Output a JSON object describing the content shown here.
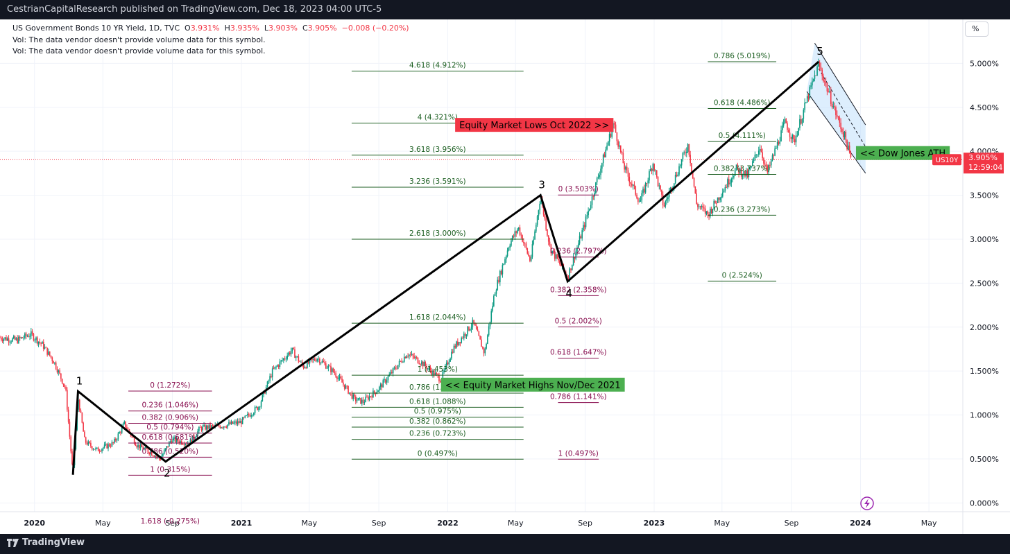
{
  "header": {
    "publisher": "CestrianCapitalResearch published on TradingView.com, Dec 18, 2023 04:00 UTC-5"
  },
  "legend": {
    "symbol": "US Government Bonds 10 YR Yield, 1D, TVC",
    "open_label": "O",
    "open": "3.931%",
    "high_label": "H",
    "high": "3.935%",
    "low_label": "L",
    "low": "3.903%",
    "close_label": "C",
    "close": "3.905%",
    "change": "−0.008 (−0.20%)",
    "vol_line_1": "Vol: The data vendor doesn't provide volume data for this symbol.",
    "vol_line_2": "Vol: The data vendor doesn't provide volume data for this symbol."
  },
  "scale_button": "%",
  "footer": {
    "brand": "TradingView"
  },
  "colors": {
    "up": "#089981",
    "down": "#f23645",
    "fib_green": "#1b5e20",
    "fib_maroon": "#880e4f",
    "green_box": "#4caf50",
    "red_box": "#f23645",
    "channel": "#bbdefb"
  },
  "chart_data": {
    "type": "line",
    "symbol": "US10Y",
    "ylim": [
      -0.1,
      5.5
    ],
    "xlim": [
      "2019-11-01",
      "2024-06-30"
    ],
    "y_ticks": [
      "0.000%",
      "0.500%",
      "1.000%",
      "1.500%",
      "2.000%",
      "2.500%",
      "3.000%",
      "3.500%",
      "4.000%",
      "4.500%",
      "5.000%"
    ],
    "x_ticks": [
      {
        "date": "2020-01-01",
        "label": "2020",
        "bold": true
      },
      {
        "date": "2020-05-01",
        "label": "May"
      },
      {
        "date": "2020-09-01",
        "label": "Sep"
      },
      {
        "date": "2021-01-01",
        "label": "2021",
        "bold": true
      },
      {
        "date": "2021-05-01",
        "label": "May"
      },
      {
        "date": "2021-09-01",
        "label": "Sep"
      },
      {
        "date": "2022-01-01",
        "label": "2022",
        "bold": true
      },
      {
        "date": "2022-05-01",
        "label": "May"
      },
      {
        "date": "2022-09-01",
        "label": "Sep"
      },
      {
        "date": "2023-01-01",
        "label": "2023",
        "bold": true
      },
      {
        "date": "2023-05-01",
        "label": "May"
      },
      {
        "date": "2023-09-01",
        "label": "Sep"
      },
      {
        "date": "2024-01-01",
        "label": "2024",
        "bold": true
      },
      {
        "date": "2024-05-01",
        "label": "May"
      }
    ],
    "price_path": [
      [
        "2019-11-01",
        1.88
      ],
      [
        "2019-12-01",
        1.85
      ],
      [
        "2019-12-25",
        1.92
      ],
      [
        "2020-01-15",
        1.8
      ],
      [
        "2020-02-05",
        1.6
      ],
      [
        "2020-02-25",
        1.3
      ],
      [
        "2020-03-09",
        0.32
      ],
      [
        "2020-03-18",
        1.2
      ],
      [
        "2020-03-30",
        0.7
      ],
      [
        "2020-04-20",
        0.6
      ],
      [
        "2020-05-20",
        0.68
      ],
      [
        "2020-06-08",
        0.9
      ],
      [
        "2020-06-30",
        0.66
      ],
      [
        "2020-07-31",
        0.55
      ],
      [
        "2020-08-10",
        0.5
      ],
      [
        "2020-08-30",
        0.72
      ],
      [
        "2020-10-01",
        0.68
      ],
      [
        "2020-10-20",
        0.85
      ],
      [
        "2020-11-30",
        0.88
      ],
      [
        "2020-12-31",
        0.92
      ],
      [
        "2021-02-01",
        1.1
      ],
      [
        "2021-02-25",
        1.5
      ],
      [
        "2021-03-31",
        1.74
      ],
      [
        "2021-04-20",
        1.55
      ],
      [
        "2021-05-15",
        1.65
      ],
      [
        "2021-06-15",
        1.48
      ],
      [
        "2021-07-20",
        1.18
      ],
      [
        "2021-08-04",
        1.15
      ],
      [
        "2021-09-01",
        1.3
      ],
      [
        "2021-10-21",
        1.7
      ],
      [
        "2021-11-15",
        1.6
      ],
      [
        "2021-12-20",
        1.4
      ],
      [
        "2022-01-10",
        1.75
      ],
      [
        "2022-02-15",
        2.05
      ],
      [
        "2022-03-07",
        1.7
      ],
      [
        "2022-03-25",
        2.4
      ],
      [
        "2022-04-20",
        2.95
      ],
      [
        "2022-05-06",
        3.13
      ],
      [
        "2022-05-27",
        2.75
      ],
      [
        "2022-06-14",
        3.49
      ],
      [
        "2022-07-01",
        2.9
      ],
      [
        "2022-08-01",
        2.57
      ],
      [
        "2022-08-30",
        3.15
      ],
      [
        "2022-09-30",
        3.85
      ],
      [
        "2022-10-21",
        4.32
      ],
      [
        "2022-11-10",
        3.8
      ],
      [
        "2022-12-07",
        3.42
      ],
      [
        "2022-12-30",
        3.87
      ],
      [
        "2023-01-18",
        3.37
      ],
      [
        "2023-03-02",
        4.08
      ],
      [
        "2023-03-17",
        3.4
      ],
      [
        "2023-04-06",
        3.28
      ],
      [
        "2023-05-26",
        3.8
      ],
      [
        "2023-06-15",
        3.72
      ],
      [
        "2023-07-07",
        4.06
      ],
      [
        "2023-07-20",
        3.75
      ],
      [
        "2023-08-21",
        4.34
      ],
      [
        "2023-09-05",
        4.1
      ],
      [
        "2023-09-30",
        4.62
      ],
      [
        "2023-10-19",
        4.99
      ],
      [
        "2023-11-01",
        4.75
      ],
      [
        "2023-11-20",
        4.4
      ],
      [
        "2023-12-05",
        4.15
      ],
      [
        "2023-12-15",
        3.905
      ]
    ],
    "wave_count": [
      {
        "label": "1",
        "date": "2020-03-18",
        "value": 1.27
      },
      {
        "label": "2",
        "date": "2020-08-20",
        "value": 0.47
      },
      {
        "label": "3",
        "date": "2022-06-14",
        "value": 3.5
      },
      {
        "label": "4",
        "date": "2022-08-01",
        "value": 2.52
      },
      {
        "label": "5",
        "date": "2023-10-19",
        "value": 5.02
      }
    ],
    "wave_start": {
      "date": "2020-03-09",
      "value": 0.32
    },
    "fib_sets": [
      {
        "color": "maroon",
        "from": "2020-06-15",
        "to": "2020-11-10",
        "levels": [
          {
            "label": "0 (1.272%)",
            "value": 1.272
          },
          {
            "label": "0.236 (1.046%)",
            "value": 1.046
          },
          {
            "label": "0.382 (0.906%)",
            "value": 0.906
          },
          {
            "label": "0.5 (0.794%)",
            "value": 0.794
          },
          {
            "label": "0.618 (0.681%)",
            "value": 0.681
          },
          {
            "label": "0.786 (0.520%)",
            "value": 0.52
          },
          {
            "label": "1 (0.315%)",
            "value": 0.315
          },
          {
            "label": "1.618 (-0.275%)",
            "value": -0.275
          }
        ]
      },
      {
        "color": "green",
        "from": "2021-07-15",
        "to": "2022-05-15",
        "levels": [
          {
            "label": "0 (0.497%)",
            "value": 0.497
          },
          {
            "label": "0.236 (0.723%)",
            "value": 0.723
          },
          {
            "label": "0.382 (0.862%)",
            "value": 0.862
          },
          {
            "label": "0.5 (0.975%)",
            "value": 0.975
          },
          {
            "label": "0.618 (1.088%)",
            "value": 1.088
          },
          {
            "label": "0.786 (1.249%)",
            "value": 1.249
          },
          {
            "label": "1 (1.453%)",
            "value": 1.453
          },
          {
            "label": "1.618 (2.044%)",
            "value": 2.044
          },
          {
            "label": "2.618 (3.000%)",
            "value": 3.0
          },
          {
            "label": "3.236 (3.591%)",
            "value": 3.591
          },
          {
            "label": "3.618 (3.956%)",
            "value": 3.956
          },
          {
            "label": "4 (4.321%)",
            "value": 4.321
          },
          {
            "label": "4.618 (4.912%)",
            "value": 4.912
          }
        ]
      },
      {
        "color": "maroon",
        "from": "2022-07-15",
        "to": "2022-09-25",
        "levels": [
          {
            "label": "0 (3.503%)",
            "value": 3.503
          },
          {
            "label": "0.236 (2.797%)",
            "value": 2.797
          },
          {
            "label": "0.382 (2.358%)",
            "value": 2.358
          },
          {
            "label": "0.5 (2.002%)",
            "value": 2.002
          },
          {
            "label": "0.618 (1.647%)",
            "value": 1.647
          },
          {
            "label": "0.786 (1.141%)",
            "value": 1.141
          },
          {
            "label": "1 (0.497%)",
            "value": 0.497
          }
        ]
      },
      {
        "color": "green",
        "from": "2023-04-06",
        "to": "2023-08-05",
        "levels": [
          {
            "label": "0 (2.524%)",
            "value": 2.524
          },
          {
            "label": "0.236 (3.273%)",
            "value": 3.273
          },
          {
            "label": "0.382 (3.737%)",
            "value": 3.737
          },
          {
            "label": "0.5 (4.111%)",
            "value": 4.111
          },
          {
            "label": "0.618 (4.486%)",
            "value": 4.486
          },
          {
            "label": "0.786 (5.019%)",
            "value": 5.019
          }
        ]
      }
    ],
    "annotations": [
      {
        "text": "Equity Market Lows Oct 2022 >>",
        "color": "red",
        "date": "2022-10-21",
        "value": 4.3,
        "anchor": "end"
      },
      {
        "text": "<< Equity Market Highs Nov/Dec 2021",
        "color": "green",
        "date": "2021-12-20",
        "value": 1.345,
        "anchor": "start"
      },
      {
        "text": "<< Dow Jones ATH",
        "color": "green",
        "date": "2023-12-24",
        "value": 3.98,
        "anchor": "start"
      }
    ],
    "channel": {
      "upper": [
        [
          "2023-10-12",
          5.23
        ],
        [
          "2024-01-10",
          4.3
        ]
      ],
      "lower": [
        [
          "2023-09-28",
          4.68
        ],
        [
          "2024-01-10",
          3.75
        ]
      ],
      "mid": [
        [
          "2023-10-19",
          4.94
        ],
        [
          "2024-01-10",
          4.05
        ]
      ]
    },
    "current_price": {
      "label": "3.905%",
      "countdown": "12:59:04",
      "value": 3.905
    }
  }
}
